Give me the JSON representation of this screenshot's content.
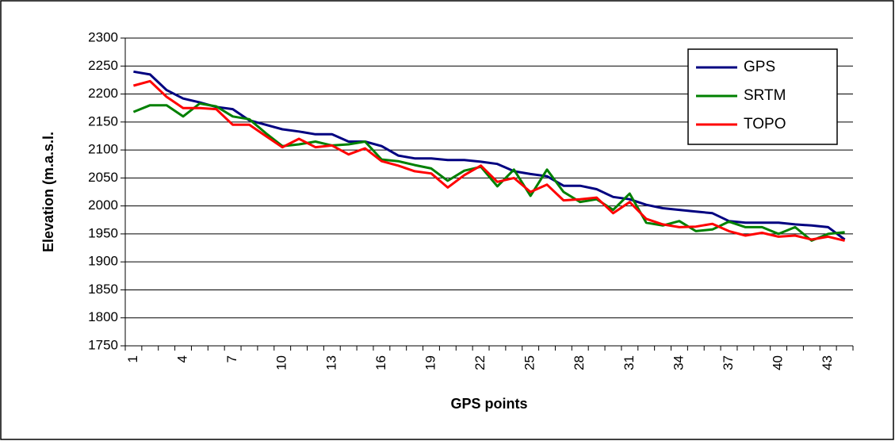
{
  "chart_data": {
    "type": "line",
    "xlabel": "GPS points",
    "ylabel": "Elevation (m.a.s.l.",
    "categories": [
      "1",
      null,
      null,
      "4",
      null,
      null,
      "7",
      null,
      null,
      "10",
      null,
      null,
      "13",
      null,
      null,
      "16",
      null,
      null,
      "19",
      null,
      null,
      "22",
      null,
      null,
      "25",
      null,
      null,
      "28",
      null,
      null,
      "31",
      null,
      null,
      "34",
      null,
      null,
      "37",
      null,
      null,
      "40",
      null,
      null,
      "43",
      null
    ],
    "series": [
      {
        "name": "GPS",
        "color": "#000080",
        "values": [
          2240,
          2235,
          2207,
          2192,
          2185,
          2177,
          2173,
          2153,
          2145,
          2137,
          2133,
          2128,
          2128,
          2115,
          2115,
          2107,
          2090,
          2085,
          2085,
          2082,
          2082,
          2079,
          2075,
          2062,
          2057,
          2053,
          2036,
          2036,
          2030,
          2016,
          2012,
          2002,
          1996,
          1993,
          1990,
          1987,
          1973,
          1970,
          1970,
          1970,
          1967,
          1965,
          1962,
          1940
        ]
      },
      {
        "name": "SRTM",
        "color": "#008000",
        "values": [
          2168,
          2180,
          2180,
          2160,
          2183,
          2178,
          2160,
          2155,
          2130,
          2107,
          2110,
          2115,
          2108,
          2110,
          2115,
          2083,
          2080,
          2073,
          2067,
          2045,
          2063,
          2070,
          2035,
          2065,
          2018,
          2065,
          2025,
          2007,
          2012,
          1993,
          2022,
          1970,
          1965,
          1973,
          1955,
          1958,
          1972,
          1962,
          1962,
          1950,
          1962,
          1938,
          1950,
          1953
        ]
      },
      {
        "name": "TOPO",
        "color": "#ff0000",
        "values": [
          2215,
          2223,
          2195,
          2175,
          2175,
          2173,
          2145,
          2145,
          2125,
          2105,
          2120,
          2105,
          2108,
          2092,
          2103,
          2080,
          2072,
          2062,
          2058,
          2033,
          2055,
          2072,
          2043,
          2050,
          2025,
          2038,
          2010,
          2012,
          2015,
          1987,
          2007,
          1977,
          1967,
          1962,
          1963,
          1968,
          1955,
          1947,
          1952,
          1945,
          1947,
          1940,
          1945,
          1938
        ]
      }
    ],
    "ylim": [
      1750,
      2300
    ],
    "yticks": [
      1750,
      1800,
      1850,
      1900,
      1950,
      2000,
      2050,
      2100,
      2150,
      2200,
      2250,
      2300
    ],
    "grid": true,
    "legend": "upper right"
  }
}
